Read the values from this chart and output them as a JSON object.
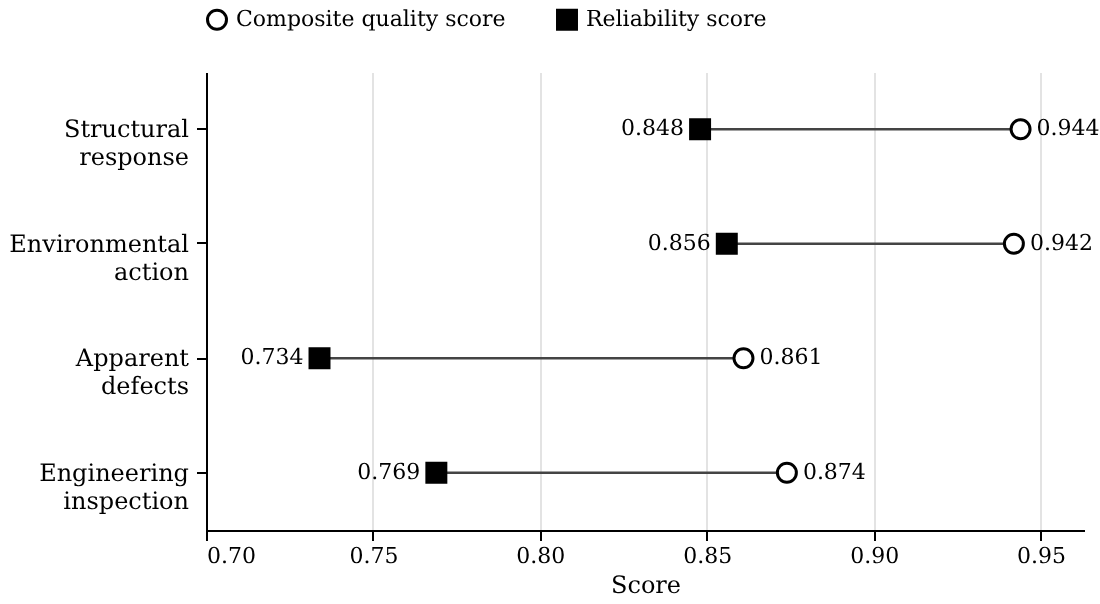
{
  "chart_data": {
    "type": "scatter",
    "orientation": "horizontal",
    "xlabel": "Score",
    "categories": [
      "Structural response",
      "Environmental action",
      "Apparent defects",
      "Engineering inspection"
    ],
    "series": [
      {
        "name": "Composite quality score",
        "color": "#000000",
        "marker": "circle",
        "values": [
          0.944,
          0.942,
          0.861,
          0.874
        ]
      },
      {
        "name": "Reliability score",
        "color": "#000000",
        "marker": "square",
        "values": [
          0.848,
          0.856,
          0.734,
          0.769
        ]
      }
    ],
    "xlim": [
      0.7,
      0.963
    ],
    "xticks": [
      {
        "value": 0.7,
        "label": "0.70"
      },
      0.75,
      {
        "value": 0.8,
        "label": "0.80"
      },
      0.85,
      {
        "value": 0.9,
        "label": "0.90"
      },
      0.95
    ],
    "grid": "x",
    "legend": "top",
    "data_labels": true
  }
}
